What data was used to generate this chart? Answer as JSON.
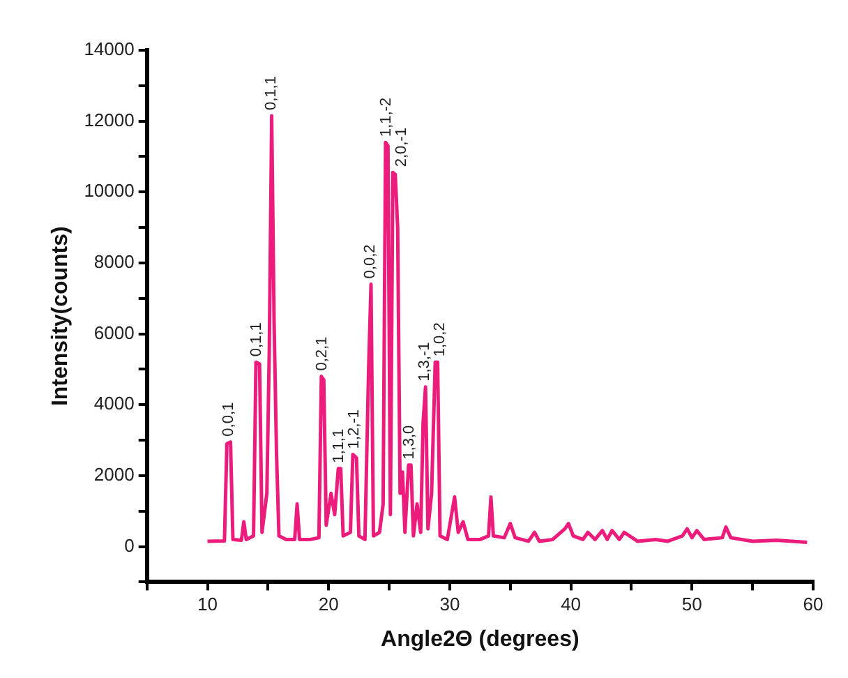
{
  "chart_data": {
    "type": "line",
    "xlabel": "Angle2Θ (degrees)",
    "ylabel": "Intensity(counts)",
    "color": "#ec1c7c",
    "marker": "none",
    "line_style": "solid",
    "grid": false,
    "legend": false,
    "xlim": [
      5,
      60
    ],
    "xticks": [
      {
        "value": 5,
        "label": null
      },
      10,
      {
        "value": 15,
        "label": null
      },
      20,
      {
        "value": 25,
        "label": null
      },
      30,
      {
        "value": 35,
        "label": null
      },
      40,
      {
        "value": 45,
        "label": null
      },
      50,
      {
        "value": 55,
        "label": null
      },
      60
    ],
    "ylim": [
      -1000,
      14000
    ],
    "yticks": [
      {
        "value": -1000,
        "label": null
      },
      0,
      {
        "value": 1000,
        "label": null
      },
      2000,
      {
        "value": 3000,
        "label": null
      },
      4000,
      {
        "value": 5000,
        "label": null
      },
      6000,
      {
        "value": 7000,
        "label": null
      },
      8000,
      {
        "value": 9000,
        "label": null
      },
      10000,
      {
        "value": 11000,
        "label": null
      },
      12000,
      {
        "value": 13000,
        "label": null
      },
      14000
    ],
    "x": [
      10.0,
      11.4,
      11.6,
      11.9,
      12.1,
      12.8,
      13.0,
      13.2,
      13.8,
      14.0,
      14.3,
      14.5,
      14.9,
      15.1,
      15.3,
      15.5,
      15.7,
      15.9,
      16.5,
      17.2,
      17.4,
      17.6,
      18.5,
      19.2,
      19.4,
      19.6,
      19.8,
      20.2,
      20.5,
      20.8,
      21.0,
      21.2,
      21.8,
      22.0,
      22.3,
      22.5,
      23.0,
      23.3,
      23.5,
      23.7,
      24.2,
      24.5,
      24.7,
      24.9,
      25.1,
      25.3,
      25.5,
      25.7,
      25.9,
      26.1,
      26.3,
      26.6,
      26.8,
      27.0,
      27.3,
      27.6,
      27.8,
      28.0,
      28.2,
      28.5,
      28.8,
      29.0,
      29.2,
      29.8,
      30.4,
      30.7,
      31.1,
      31.5,
      32.5,
      33.2,
      33.4,
      33.6,
      34.5,
      35.0,
      35.4,
      36.5,
      37.0,
      37.4,
      38.5,
      39.5,
      39.8,
      40.2,
      41.0,
      41.4,
      42.0,
      42.6,
      43.0,
      43.4,
      44.0,
      44.4,
      45.5,
      47.0,
      48.0,
      49.2,
      49.6,
      50.0,
      50.4,
      51.0,
      52.5,
      52.8,
      53.2,
      55.0,
      57.0,
      59.5
    ],
    "values": [
      150,
      160,
      2900,
      2950,
      200,
      180,
      700,
      200,
      300,
      5200,
      5150,
      400,
      1500,
      5500,
      12150,
      6300,
      2600,
      300,
      200,
      200,
      1200,
      200,
      200,
      250,
      4800,
      4700,
      600,
      1500,
      900,
      2200,
      2200,
      300,
      400,
      2600,
      2500,
      300,
      200,
      5000,
      7400,
      300,
      400,
      1200,
      11400,
      11300,
      900,
      10550,
      10500,
      9000,
      1500,
      2100,
      400,
      2300,
      2300,
      300,
      1200,
      400,
      3500,
      4500,
      500,
      1500,
      5200,
      5200,
      300,
      200,
      1400,
      400,
      700,
      200,
      200,
      300,
      1400,
      300,
      250,
      650,
      250,
      150,
      400,
      150,
      200,
      500,
      650,
      300,
      200,
      400,
      200,
      450,
      200,
      450,
      200,
      400,
      150,
      200,
      150,
      300,
      500,
      250,
      450,
      200,
      250,
      550,
      250,
      150,
      180,
      120
    ],
    "annotations": [
      {
        "text": "0,0,1",
        "x": 11.8,
        "y": 2950
      },
      {
        "text": "0,1,1",
        "x": 14.1,
        "y": 5200
      },
      {
        "text": "0,1,1",
        "x": 15.3,
        "y": 12150
      },
      {
        "text": "0,2,1",
        "x": 19.5,
        "y": 4800
      },
      {
        "text": "1,1,1",
        "x": 20.9,
        "y": 2200
      },
      {
        "text": "1,2,-1",
        "x": 22.1,
        "y": 2600
      },
      {
        "text": "0,0,2",
        "x": 23.5,
        "y": 7400
      },
      {
        "text": "1,1,-2",
        "x": 24.8,
        "y": 11400
      },
      {
        "text": "2,0,-1",
        "x": 25.4,
        "y": 10550
      },
      {
        "text": "1,3,0",
        "x": 26.7,
        "y": 2300
      },
      {
        "text": "1,3,-1",
        "x": 28.0,
        "y": 4500
      },
      {
        "text": "1,0,2",
        "x": 28.9,
        "y": 5200
      }
    ]
  }
}
